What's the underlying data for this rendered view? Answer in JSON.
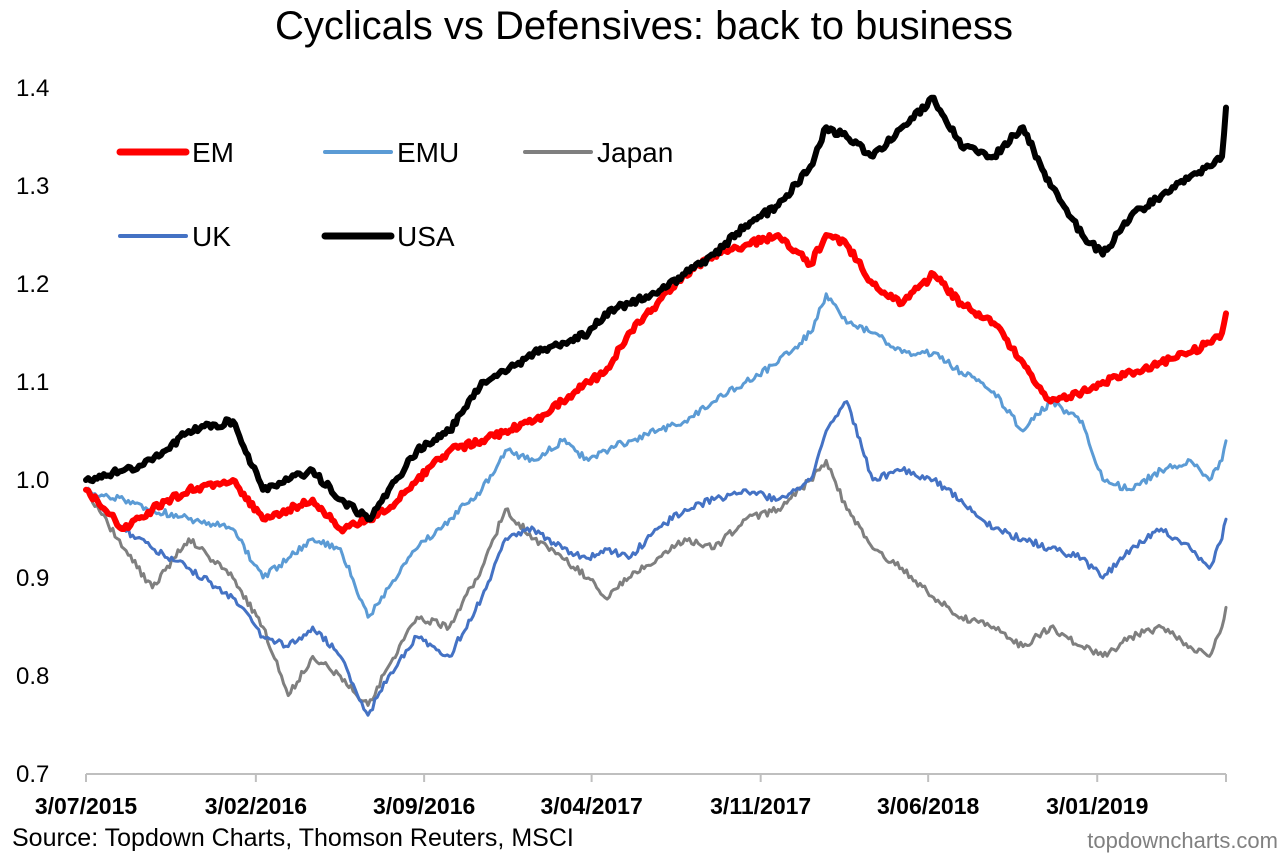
{
  "chart_data": {
    "type": "line",
    "title": "Cyclicals vs Defensives: back to business",
    "source": "Source: Topdown Charts, Thomson Reuters, MSCI",
    "watermark": "topdowncharts.com",
    "ylim": [
      0.7,
      1.4
    ],
    "yticks": [
      "0.7",
      "0.8",
      "0.9",
      "1.0",
      "1.1",
      "1.2",
      "1.3",
      "1.4"
    ],
    "xlim": [
      "2015-07-03",
      "2019-06-15"
    ],
    "xticks": [
      "3/07/2015",
      "3/02/2016",
      "3/09/2016",
      "3/04/2017",
      "3/11/2017",
      "3/06/2018",
      "3/01/2019"
    ],
    "xtick_dates": [
      "2015-07-03",
      "2016-02-03",
      "2016-09-03",
      "2017-04-03",
      "2017-11-03",
      "2018-06-03",
      "2019-01-03"
    ],
    "grid": false,
    "legend_position": "top-left",
    "series": [
      {
        "name": "Japan",
        "color": "#7f7f7f",
        "width": 3,
        "x": [
          "2015-07-03",
          "2015-08-20",
          "2015-09-25",
          "2015-11-10",
          "2016-01-05",
          "2016-02-12",
          "2016-03-15",
          "2016-04-15",
          "2016-05-20",
          "2016-06-24",
          "2016-07-20",
          "2016-08-25",
          "2016-10-05",
          "2016-11-15",
          "2016-12-15",
          "2017-01-20",
          "2017-02-25",
          "2017-03-30",
          "2017-04-20",
          "2017-05-20",
          "2017-06-25",
          "2017-07-30",
          "2017-09-05",
          "2017-10-15",
          "2017-11-25",
          "2018-01-05",
          "2018-01-25",
          "2018-02-20",
          "2018-03-25",
          "2018-05-01",
          "2018-06-10",
          "2018-07-15",
          "2018-08-25",
          "2018-10-01",
          "2018-11-05",
          "2018-12-15",
          "2019-01-10",
          "2019-02-15",
          "2019-03-25",
          "2019-05-01",
          "2019-05-25",
          "2019-06-10",
          "2019-06-15"
        ],
        "values": [
          0.99,
          0.93,
          0.89,
          0.94,
          0.9,
          0.85,
          0.78,
          0.82,
          0.8,
          0.77,
          0.81,
          0.86,
          0.85,
          0.91,
          0.97,
          0.94,
          0.92,
          0.9,
          0.88,
          0.9,
          0.92,
          0.94,
          0.93,
          0.96,
          0.97,
          1.0,
          1.02,
          0.97,
          0.93,
          0.91,
          0.88,
          0.86,
          0.85,
          0.83,
          0.85,
          0.83,
          0.82,
          0.84,
          0.85,
          0.83,
          0.82,
          0.85,
          0.87
        ]
      },
      {
        "name": "UK",
        "color": "#4472c4",
        "width": 3,
        "x": [
          "2015-07-03",
          "2015-08-20",
          "2015-09-25",
          "2015-11-10",
          "2016-01-05",
          "2016-02-12",
          "2016-03-15",
          "2016-04-15",
          "2016-05-20",
          "2016-06-24",
          "2016-07-20",
          "2016-08-25",
          "2016-10-05",
          "2016-11-15",
          "2016-12-15",
          "2017-01-20",
          "2017-02-25",
          "2017-03-30",
          "2017-04-20",
          "2017-05-20",
          "2017-06-25",
          "2017-07-30",
          "2017-09-05",
          "2017-10-15",
          "2017-11-25",
          "2018-01-05",
          "2018-01-25",
          "2018-02-20",
          "2018-03-25",
          "2018-05-01",
          "2018-06-10",
          "2018-07-15",
          "2018-08-25",
          "2018-10-01",
          "2018-11-05",
          "2018-12-15",
          "2019-01-10",
          "2019-02-15",
          "2019-03-25",
          "2019-05-01",
          "2019-05-25",
          "2019-06-10",
          "2019-06-15"
        ],
        "values": [
          0.99,
          0.95,
          0.93,
          0.91,
          0.88,
          0.84,
          0.83,
          0.85,
          0.82,
          0.76,
          0.8,
          0.84,
          0.82,
          0.88,
          0.94,
          0.95,
          0.93,
          0.92,
          0.93,
          0.92,
          0.95,
          0.97,
          0.98,
          0.99,
          0.98,
          1.0,
          1.05,
          1.08,
          1.0,
          1.01,
          1.0,
          0.98,
          0.95,
          0.94,
          0.93,
          0.92,
          0.9,
          0.93,
          0.95,
          0.93,
          0.91,
          0.94,
          0.96
        ]
      },
      {
        "name": "EMU",
        "color": "#5b9bd5",
        "width": 3,
        "x": [
          "2015-07-03",
          "2015-08-20",
          "2015-09-25",
          "2015-11-10",
          "2016-01-05",
          "2016-02-12",
          "2016-03-15",
          "2016-04-15",
          "2016-05-20",
          "2016-06-24",
          "2016-07-20",
          "2016-08-25",
          "2016-10-05",
          "2016-11-15",
          "2016-12-15",
          "2017-01-20",
          "2017-02-25",
          "2017-03-30",
          "2017-04-20",
          "2017-05-20",
          "2017-06-25",
          "2017-07-30",
          "2017-09-05",
          "2017-10-15",
          "2017-11-25",
          "2018-01-05",
          "2018-01-25",
          "2018-02-20",
          "2018-03-25",
          "2018-05-01",
          "2018-06-10",
          "2018-07-15",
          "2018-08-25",
          "2018-10-01",
          "2018-11-05",
          "2018-12-15",
          "2019-01-10",
          "2019-02-15",
          "2019-03-25",
          "2019-05-01",
          "2019-05-25",
          "2019-06-10",
          "2019-06-15"
        ],
        "values": [
          0.99,
          0.98,
          0.97,
          0.96,
          0.95,
          0.9,
          0.92,
          0.94,
          0.93,
          0.86,
          0.89,
          0.93,
          0.96,
          0.99,
          1.03,
          1.02,
          1.04,
          1.02,
          1.03,
          1.04,
          1.05,
          1.06,
          1.08,
          1.1,
          1.12,
          1.15,
          1.19,
          1.16,
          1.15,
          1.13,
          1.13,
          1.11,
          1.09,
          1.05,
          1.08,
          1.06,
          1.0,
          0.99,
          1.01,
          1.02,
          1.0,
          1.02,
          1.04
        ]
      },
      {
        "name": "EM",
        "color": "#ff0000",
        "width": 6,
        "x": [
          "2015-07-03",
          "2015-08-20",
          "2015-09-25",
          "2015-11-10",
          "2016-01-05",
          "2016-02-12",
          "2016-03-15",
          "2016-04-15",
          "2016-05-20",
          "2016-06-24",
          "2016-07-20",
          "2016-08-25",
          "2016-10-05",
          "2016-11-15",
          "2016-12-15",
          "2017-01-20",
          "2017-02-25",
          "2017-03-30",
          "2017-04-20",
          "2017-05-20",
          "2017-06-25",
          "2017-07-30",
          "2017-09-05",
          "2017-10-15",
          "2017-11-25",
          "2018-01-05",
          "2018-01-25",
          "2018-02-20",
          "2018-03-25",
          "2018-05-01",
          "2018-06-10",
          "2018-07-15",
          "2018-08-25",
          "2018-10-01",
          "2018-11-05",
          "2018-12-15",
          "2019-01-10",
          "2019-02-15",
          "2019-03-25",
          "2019-05-01",
          "2019-05-25",
          "2019-06-10",
          "2019-06-15"
        ],
        "values": [
          0.99,
          0.95,
          0.97,
          0.99,
          1.0,
          0.96,
          0.97,
          0.98,
          0.95,
          0.96,
          0.97,
          1.0,
          1.03,
          1.04,
          1.05,
          1.06,
          1.08,
          1.1,
          1.11,
          1.15,
          1.18,
          1.21,
          1.23,
          1.24,
          1.25,
          1.22,
          1.25,
          1.24,
          1.2,
          1.18,
          1.21,
          1.18,
          1.16,
          1.12,
          1.08,
          1.09,
          1.1,
          1.11,
          1.12,
          1.13,
          1.14,
          1.15,
          1.17
        ]
      },
      {
        "name": "USA",
        "color": "#000000",
        "width": 6,
        "x": [
          "2015-07-03",
          "2015-08-20",
          "2015-09-25",
          "2015-11-10",
          "2016-01-05",
          "2016-02-12",
          "2016-03-15",
          "2016-04-15",
          "2016-05-20",
          "2016-06-24",
          "2016-07-20",
          "2016-08-25",
          "2016-10-05",
          "2016-11-15",
          "2016-12-15",
          "2017-01-20",
          "2017-02-25",
          "2017-03-30",
          "2017-04-20",
          "2017-05-20",
          "2017-06-25",
          "2017-07-30",
          "2017-09-05",
          "2017-10-15",
          "2017-11-25",
          "2018-01-05",
          "2018-01-25",
          "2018-02-20",
          "2018-03-25",
          "2018-05-01",
          "2018-06-10",
          "2018-07-15",
          "2018-08-25",
          "2018-10-01",
          "2018-11-05",
          "2018-12-15",
          "2019-01-10",
          "2019-02-15",
          "2019-03-25",
          "2019-05-01",
          "2019-05-25",
          "2019-06-10",
          "2019-06-15"
        ],
        "values": [
          1.0,
          1.01,
          1.02,
          1.05,
          1.06,
          0.99,
          1.0,
          1.01,
          0.98,
          0.96,
          0.99,
          1.03,
          1.05,
          1.1,
          1.11,
          1.13,
          1.14,
          1.15,
          1.17,
          1.18,
          1.19,
          1.21,
          1.23,
          1.26,
          1.28,
          1.32,
          1.36,
          1.35,
          1.33,
          1.36,
          1.39,
          1.34,
          1.33,
          1.36,
          1.3,
          1.25,
          1.23,
          1.27,
          1.29,
          1.31,
          1.32,
          1.33,
          1.38
        ]
      }
    ],
    "legend": [
      {
        "name": "EM",
        "color": "#ff0000",
        "width": 7
      },
      {
        "name": "EMU",
        "color": "#5b9bd5",
        "width": 4
      },
      {
        "name": "Japan",
        "color": "#7f7f7f",
        "width": 4
      },
      {
        "name": "UK",
        "color": "#4472c4",
        "width": 4
      },
      {
        "name": "USA",
        "color": "#000000",
        "width": 7
      }
    ]
  }
}
